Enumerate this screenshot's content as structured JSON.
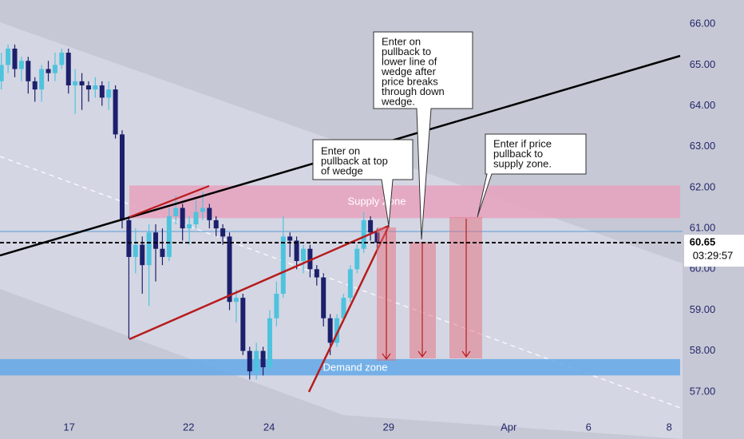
{
  "chart_data": {
    "type": "candlestick",
    "ylim": [
      56.43,
      66.59
    ],
    "yticks": [
      {
        "value": 57,
        "label": "57.00"
      },
      {
        "value": 58,
        "label": "58.00"
      },
      {
        "value": 59,
        "label": "59.00"
      },
      {
        "value": 60,
        "label": "60.00"
      },
      {
        "value": 61,
        "label": "61.00"
      },
      {
        "value": 62,
        "label": "62.00"
      },
      {
        "value": 63,
        "label": "63.00"
      },
      {
        "value": 64,
        "label": "64.00"
      },
      {
        "value": 65,
        "label": "65.00"
      },
      {
        "value": 66,
        "label": "66.00"
      }
    ],
    "xlim": [
      -0.2,
      101.5
    ],
    "xticks": [
      {
        "value": 10.1,
        "label": "17"
      },
      {
        "value": 27.9,
        "label": "22"
      },
      {
        "value": 39.9,
        "label": "24"
      },
      {
        "value": 57.7,
        "label": "29"
      },
      {
        "value": 75.6,
        "label": "Apr"
      },
      {
        "value": 87.5,
        "label": "6"
      },
      {
        "value": 99.5,
        "label": "8"
      }
    ],
    "up_color": "#4ec3de",
    "down_color": "#1c1f6b",
    "x": [
      0,
      1,
      2,
      3,
      4,
      5,
      6,
      7,
      8,
      9,
      10,
      11,
      12,
      13,
      14,
      15,
      16,
      17,
      18,
      19,
      20,
      21,
      22,
      23,
      24,
      25,
      26,
      27,
      28,
      29,
      30,
      31,
      32,
      33,
      34,
      35,
      36,
      37,
      38,
      39,
      40,
      41,
      42,
      43,
      44,
      45,
      46,
      47,
      48,
      49,
      50,
      51,
      52,
      53,
      54,
      55,
      56
    ],
    "open": [
      64.6,
      65.0,
      65.4,
      64.9,
      65.1,
      64.6,
      64.4,
      64.9,
      64.8,
      65.0,
      65.3,
      64.5,
      64.6,
      64.5,
      64.4,
      64.5,
      64.2,
      64.4,
      63.3,
      61.2,
      60.3,
      60.6,
      60.1,
      60.9,
      60.5,
      60.3,
      61.3,
      61.5,
      61.0,
      61.1,
      61.4,
      61.5,
      61.2,
      61.0,
      60.8,
      59.2,
      59.3,
      58.0,
      57.5,
      58.0,
      57.6,
      58.8,
      59.4,
      60.8,
      60.7,
      60.2,
      60.5,
      60.0,
      59.8,
      58.8,
      58.2,
      58.8,
      59.3,
      60.0,
      60.5,
      61.2,
      60.9
    ],
    "high": [
      65.3,
      65.5,
      65.5,
      65.2,
      65.2,
      64.7,
      65.0,
      65.1,
      65.3,
      65.4,
      65.4,
      64.9,
      64.8,
      64.6,
      64.7,
      64.6,
      64.6,
      64.5,
      63.4,
      61.3,
      61.0,
      60.8,
      61.1,
      61.1,
      61.0,
      61.5,
      61.8,
      61.6,
      61.3,
      61.7,
      61.9,
      61.6,
      61.3,
      61.1,
      60.9,
      59.5,
      59.4,
      58.1,
      58.2,
      58.1,
      59.0,
      59.7,
      61.3,
      60.9,
      60.8,
      60.6,
      60.6,
      60.1,
      59.9,
      58.9,
      58.9,
      59.4,
      60.1,
      60.6,
      61.4,
      61.3,
      61.0
    ],
    "low": [
      64.4,
      64.8,
      64.7,
      64.6,
      64.3,
      64.1,
      64.1,
      64.6,
      64.6,
      64.9,
      64.3,
      63.8,
      63.9,
      64.1,
      64.2,
      64.0,
      63.9,
      63.2,
      61.0,
      58.3,
      59.9,
      59.4,
      59.1,
      59.7,
      60.1,
      60.2,
      61.1,
      60.7,
      60.6,
      61.0,
      61.2,
      61.0,
      60.8,
      60.6,
      59.0,
      58.7,
      57.9,
      57.3,
      57.3,
      57.4,
      57.5,
      58.6,
      59.3,
      60.3,
      60.0,
      59.9,
      59.8,
      59.6,
      58.6,
      57.9,
      58.1,
      58.7,
      59.2,
      59.9,
      60.4,
      60.7,
      60.5
    ],
    "close": [
      65.0,
      65.4,
      64.9,
      65.1,
      64.6,
      64.4,
      64.9,
      64.8,
      65.0,
      65.3,
      64.5,
      64.6,
      64.5,
      64.4,
      64.5,
      64.2,
      64.4,
      63.3,
      61.2,
      60.3,
      60.6,
      60.1,
      60.9,
      60.5,
      60.3,
      61.3,
      61.5,
      61.0,
      61.1,
      61.4,
      61.5,
      61.2,
      61.0,
      60.8,
      59.2,
      59.3,
      58.0,
      57.5,
      58.0,
      57.6,
      58.8,
      59.4,
      60.8,
      60.7,
      60.2,
      60.5,
      60.0,
      59.8,
      58.8,
      58.2,
      58.8,
      59.3,
      60.0,
      60.5,
      61.2,
      60.9,
      60.65
    ],
    "last_price": 60.65,
    "countdown": "03:29:57",
    "zones": [
      {
        "name": "Supply Zone",
        "range": [
          61.25,
          62.05
        ],
        "color": "#e8a2bd"
      },
      {
        "name": "Demand zone",
        "range": [
          57.4,
          57.8
        ],
        "color": "#63a9e8"
      }
    ],
    "annotations": [
      {
        "lines": [
          "Enter on",
          "pullback at top",
          "of wedge"
        ]
      },
      {
        "lines": [
          "Enter on",
          "pullback to",
          "lower line of",
          "wedge after",
          "price breaks",
          "through down",
          "wedge."
        ]
      },
      {
        "lines": [
          "Enter if price",
          "pullback to",
          "supply zone."
        ]
      }
    ]
  }
}
